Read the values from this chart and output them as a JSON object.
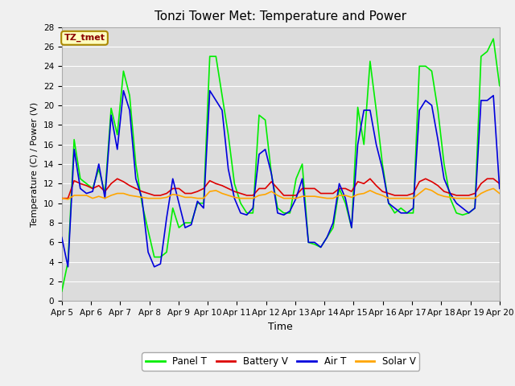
{
  "title": "Tonzi Tower Met: Temperature and Power",
  "xlabel": "Time",
  "ylabel": "Temperature (C) / Power (V)",
  "ylim": [
    0,
    28
  ],
  "xlim": [
    0,
    15
  ],
  "x_tick_labels": [
    "Apr 5",
    "Apr 6",
    "Apr 7",
    "Apr 8",
    "Apr 9",
    "Apr 10",
    "Apr 11",
    "Apr 12",
    "Apr 13",
    "Apr 14",
    "Apr 15",
    "Apr 16",
    "Apr 17",
    "Apr 18",
    "Apr 19",
    "Apr 20"
  ],
  "annotation_text": "TZ_tmet",
  "annotation_color": "#8B0000",
  "annotation_bg": "#FFFFC0",
  "fig_bg_color": "#F0F0F0",
  "ax_bg_color": "#DCDCDC",
  "grid_color": "#FFFFFF",
  "line_colors": {
    "panel": "#00EE00",
    "battery": "#DD0000",
    "air": "#0000DD",
    "solar": "#FFA500"
  },
  "legend_labels": [
    "Panel T",
    "Battery V",
    "Air T",
    "Solar V"
  ],
  "panel_t": [
    1.0,
    4.0,
    16.5,
    12.5,
    12.0,
    11.5,
    13.5,
    11.0,
    19.7,
    17.0,
    23.5,
    21.0,
    14.0,
    10.0,
    7.2,
    4.5,
    4.5,
    5.0,
    9.5,
    7.5,
    8.0,
    8.0,
    10.0,
    10.0,
    25.0,
    25.0,
    21.0,
    17.0,
    12.0,
    10.0,
    9.0,
    9.0,
    19.0,
    18.5,
    13.0,
    9.5,
    9.0,
    9.0,
    12.5,
    14.0,
    6.0,
    5.8,
    5.5,
    6.5,
    7.5,
    11.5,
    10.0,
    7.5,
    19.8,
    16.0,
    24.5,
    19.5,
    14.0,
    10.0,
    9.0,
    9.5,
    9.0,
    9.0,
    24.0,
    24.0,
    23.5,
    19.5,
    14.0,
    10.5,
    9.0,
    8.8,
    9.0,
    9.5,
    25.0,
    25.5,
    26.8,
    22.0
  ],
  "battery_v": [
    10.5,
    10.5,
    12.3,
    12.0,
    11.8,
    11.5,
    11.8,
    11.2,
    12.0,
    12.5,
    12.2,
    11.8,
    11.5,
    11.2,
    11.0,
    10.8,
    10.8,
    11.0,
    11.5,
    11.5,
    11.0,
    11.0,
    11.2,
    11.5,
    12.3,
    12.0,
    11.8,
    11.5,
    11.2,
    11.0,
    10.8,
    10.8,
    11.5,
    11.5,
    12.2,
    11.5,
    10.8,
    10.8,
    10.8,
    11.5,
    11.5,
    11.5,
    11.0,
    11.0,
    11.0,
    11.5,
    11.5,
    11.2,
    12.2,
    12.0,
    12.5,
    11.8,
    11.2,
    11.0,
    10.8,
    10.8,
    10.8,
    11.0,
    12.2,
    12.5,
    12.2,
    11.8,
    11.2,
    11.0,
    10.8,
    10.8,
    10.8,
    11.0,
    12.0,
    12.5,
    12.5,
    12.0
  ],
  "air_t": [
    6.5,
    3.5,
    15.5,
    11.5,
    11.0,
    11.2,
    14.0,
    10.5,
    19.0,
    15.5,
    21.5,
    19.5,
    12.5,
    10.5,
    5.0,
    3.5,
    3.8,
    8.5,
    12.5,
    10.0,
    7.5,
    7.8,
    10.2,
    9.5,
    21.5,
    20.5,
    19.5,
    13.5,
    10.5,
    9.0,
    8.8,
    9.5,
    15.0,
    15.5,
    13.0,
    9.0,
    8.8,
    9.2,
    10.5,
    12.5,
    6.0,
    6.0,
    5.5,
    6.5,
    8.0,
    12.0,
    10.5,
    7.5,
    16.0,
    19.5,
    19.5,
    16.0,
    13.5,
    10.0,
    9.5,
    9.0,
    9.0,
    9.5,
    19.5,
    20.5,
    20.0,
    16.5,
    12.5,
    11.0,
    10.0,
    9.5,
    9.0,
    9.5,
    20.5,
    20.5,
    21.0,
    11.5
  ],
  "solar_v": [
    10.5,
    10.4,
    10.8,
    10.8,
    10.8,
    10.5,
    10.7,
    10.5,
    10.8,
    11.0,
    11.0,
    10.8,
    10.7,
    10.6,
    10.5,
    10.5,
    10.5,
    10.6,
    10.9,
    10.8,
    10.6,
    10.6,
    10.5,
    10.5,
    11.2,
    11.3,
    11.0,
    10.8,
    10.6,
    10.5,
    10.5,
    10.5,
    10.8,
    10.9,
    11.2,
    10.8,
    10.5,
    10.5,
    10.5,
    10.7,
    10.7,
    10.7,
    10.6,
    10.5,
    10.5,
    10.8,
    10.8,
    10.6,
    10.9,
    11.0,
    11.3,
    11.0,
    10.8,
    10.5,
    10.5,
    10.5,
    10.5,
    10.5,
    11.0,
    11.5,
    11.3,
    10.9,
    10.7,
    10.6,
    10.5,
    10.5,
    10.5,
    10.5,
    11.0,
    11.3,
    11.5,
    11.0
  ]
}
